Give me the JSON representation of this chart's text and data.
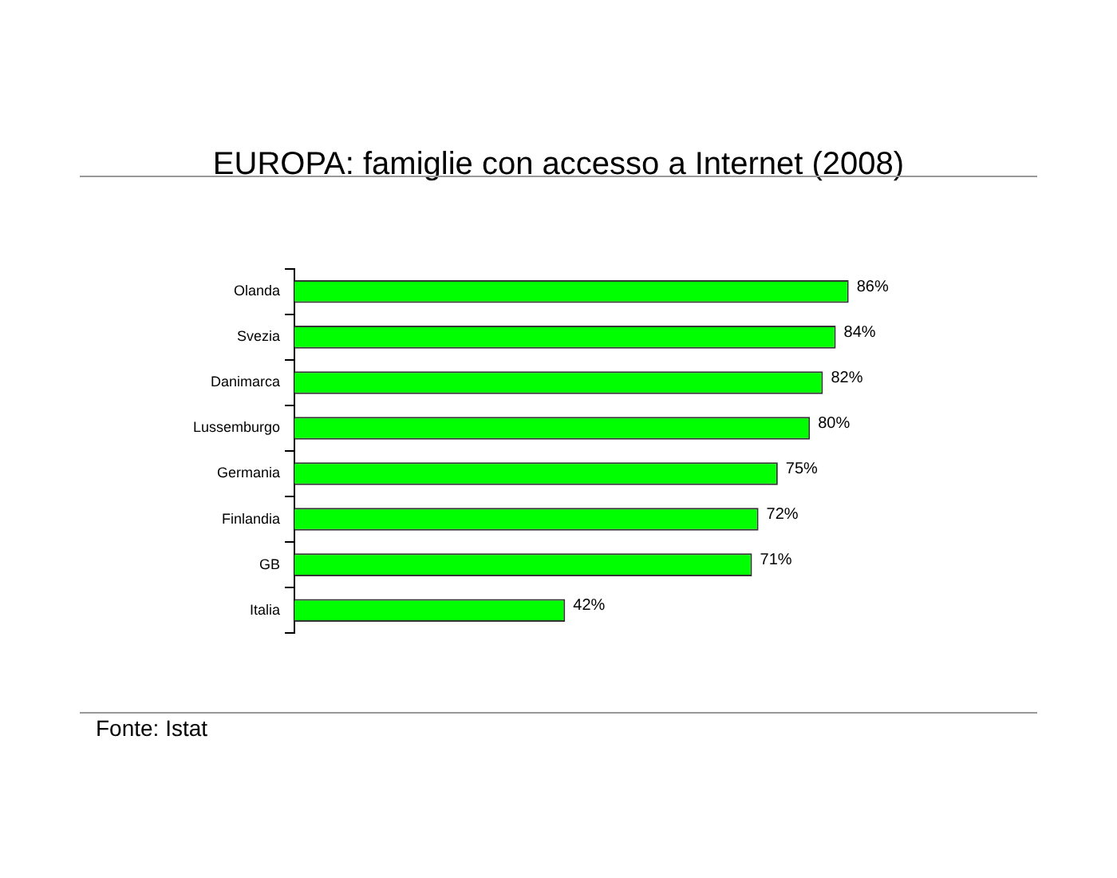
{
  "chart_data": {
    "type": "bar",
    "orientation": "horizontal",
    "title": "EUROPA: famiglie con accesso a Internet (2008)",
    "categories": [
      "Olanda",
      "Svezia",
      "Danimarca",
      "Lussemburgo",
      "Germania",
      "Finlandia",
      "GB",
      "Italia"
    ],
    "values": [
      86,
      84,
      82,
      80,
      75,
      72,
      71,
      42
    ],
    "value_labels": [
      "86%",
      "84%",
      "82%",
      "80%",
      "75%",
      "72%",
      "71%",
      "42%"
    ],
    "color": "#00ff00",
    "grid": false,
    "legend": false,
    "tick_labels": "y",
    "annotations": [
      "Fonte: Istat"
    ]
  }
}
